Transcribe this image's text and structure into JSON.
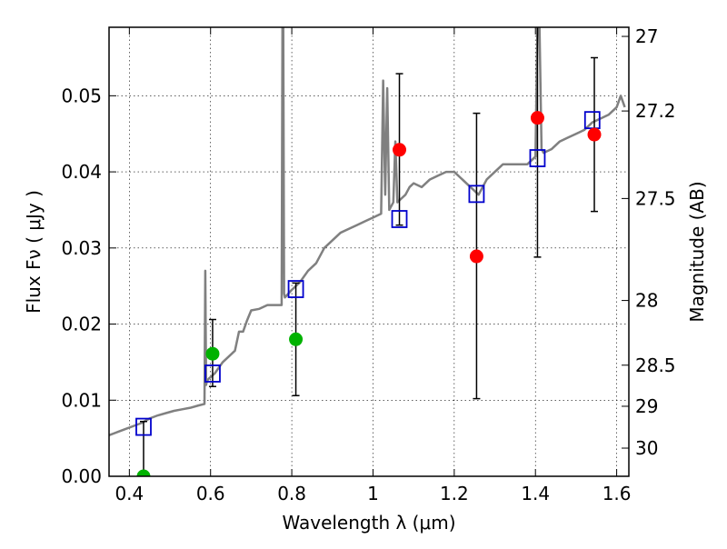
{
  "chart_data": {
    "type": "scatter",
    "title": "",
    "xlabel": "Wavelength  λ (μm)",
    "ylabel": "Flux  Fν  ( μJy )",
    "ylabel_right": "Magnitude (AB)",
    "xlim": [
      0.35,
      1.63
    ],
    "ylim": [
      0.0,
      0.059
    ],
    "grid": true,
    "x_ticks": [
      0.4,
      0.6,
      0.8,
      1.0,
      1.2,
      1.4,
      1.6
    ],
    "x_tick_labels": [
      "0.4",
      "0.6",
      "0.8",
      "1",
      "1.2",
      "1.4",
      "1.6"
    ],
    "y_ticks": [
      0.0,
      0.01,
      0.02,
      0.03,
      0.04,
      0.05
    ],
    "y_tick_labels": [
      "0.00",
      "0.01",
      "0.02",
      "0.03",
      "0.04",
      "0.05"
    ],
    "right_ticks": [
      {
        "flux": 0.0578,
        "label": "27"
      },
      {
        "flux": 0.048,
        "label": "27.2"
      },
      {
        "flux": 0.0365,
        "label": "27.5"
      },
      {
        "flux": 0.0231,
        "label": "28"
      },
      {
        "flux": 0.0146,
        "label": "28.5"
      },
      {
        "flux": 0.0092,
        "label": "29"
      },
      {
        "flux": 0.0037,
        "label": "30"
      }
    ],
    "series": [
      {
        "name": "Model SED",
        "kind": "line",
        "color": "#808080",
        "x": [
          0.35,
          0.37,
          0.39,
          0.41,
          0.43,
          0.45,
          0.47,
          0.49,
          0.51,
          0.53,
          0.55,
          0.57,
          0.585,
          0.587,
          0.589,
          0.591,
          0.595,
          0.61,
          0.63,
          0.65,
          0.66,
          0.67,
          0.68,
          0.69,
          0.7,
          0.72,
          0.74,
          0.76,
          0.775,
          0.777,
          0.779,
          0.781,
          0.783,
          0.8,
          0.82,
          0.84,
          0.86,
          0.88,
          0.9,
          0.92,
          0.94,
          0.96,
          0.98,
          1.0,
          1.02,
          1.025,
          1.03,
          1.035,
          1.04,
          1.05,
          1.055,
          1.06,
          1.07,
          1.08,
          1.09,
          1.1,
          1.12,
          1.14,
          1.16,
          1.18,
          1.2,
          1.22,
          1.24,
          1.26,
          1.28,
          1.3,
          1.32,
          1.34,
          1.36,
          1.38,
          1.4,
          1.405,
          1.41,
          1.415,
          1.42,
          1.44,
          1.46,
          1.48,
          1.5,
          1.52,
          1.54,
          1.56,
          1.58,
          1.6,
          1.61,
          1.62
        ],
        "y": [
          0.0054,
          0.0058,
          0.0062,
          0.0066,
          0.007,
          0.0076,
          0.008,
          0.0083,
          0.0086,
          0.0088,
          0.009,
          0.0093,
          0.0095,
          0.027,
          0.012,
          0.0125,
          0.0128,
          0.0135,
          0.015,
          0.016,
          0.0165,
          0.019,
          0.019,
          0.0205,
          0.0218,
          0.022,
          0.0225,
          0.0225,
          0.0225,
          0.059,
          0.059,
          0.024,
          0.0235,
          0.0245,
          0.0255,
          0.027,
          0.028,
          0.03,
          0.031,
          0.032,
          0.0325,
          0.033,
          0.0335,
          0.034,
          0.0345,
          0.052,
          0.037,
          0.051,
          0.035,
          0.036,
          0.044,
          0.036,
          0.0365,
          0.037,
          0.038,
          0.0385,
          0.038,
          0.039,
          0.0395,
          0.04,
          0.04,
          0.039,
          0.038,
          0.037,
          0.039,
          0.04,
          0.041,
          0.041,
          0.041,
          0.041,
          0.042,
          0.059,
          0.059,
          0.043,
          0.0425,
          0.043,
          0.044,
          0.0445,
          0.045,
          0.0455,
          0.0465,
          0.047,
          0.0475,
          0.0485,
          0.05,
          0.0485
        ]
      },
      {
        "name": "Model photometry",
        "kind": "open-square",
        "color": "#0000cc",
        "x": [
          0.435,
          0.605,
          0.81,
          1.065,
          1.255,
          1.405,
          1.54
        ],
        "y": [
          0.0065,
          0.0135,
          0.0246,
          0.0338,
          0.0371,
          0.0418,
          0.0468
        ]
      },
      {
        "name": "Observed flux (low S/N)",
        "kind": "filled-circle",
        "color": "#00b200",
        "x": [
          0.435,
          0.605,
          0.81
        ],
        "y": [
          0.0,
          0.0161,
          0.018
        ]
      },
      {
        "name": "Observed flux",
        "kind": "filled-circle",
        "color": "#ff0000",
        "x": [
          1.065,
          1.255,
          1.405,
          1.545
        ],
        "y": [
          0.0429,
          0.0289,
          0.0471,
          0.0449
        ]
      },
      {
        "name": "Error bars",
        "kind": "errorbar",
        "color": "#000000",
        "x": [
          0.435,
          0.605,
          0.81,
          1.065,
          1.255,
          1.405,
          1.545
        ],
        "ylow": [
          0.0,
          0.0118,
          0.0106,
          0.033,
          0.0102,
          0.0288,
          0.0348
        ],
        "yhigh": [
          0.0072,
          0.0206,
          0.0254,
          0.0529,
          0.0477,
          0.0593,
          0.055
        ]
      }
    ]
  }
}
